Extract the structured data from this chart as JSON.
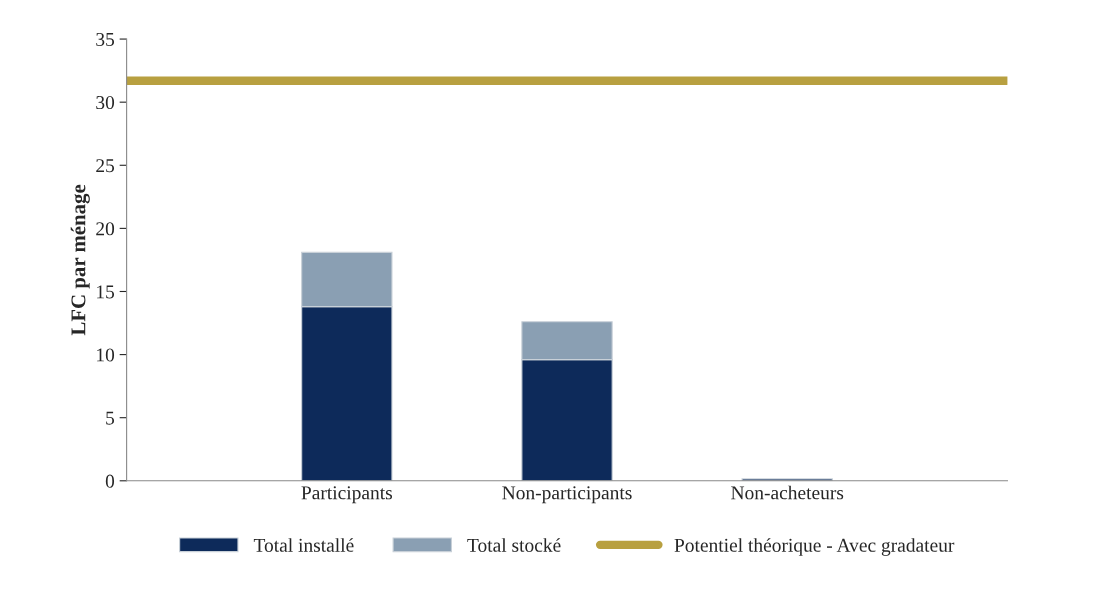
{
  "chart_data": {
    "type": "bar",
    "stacked": true,
    "ylabel": "LFC par ménage",
    "categories": [
      null,
      "Participants",
      "Non-participants",
      "Non-acheteurs",
      null
    ],
    "series": [
      {
        "name": "Total installé",
        "color": "#0d2a5a",
        "values": [
          null,
          13.8,
          9.6,
          0.15,
          null
        ]
      },
      {
        "name": "Total stocké",
        "color": "#8a9fb3",
        "values": [
          null,
          4.3,
          3.0,
          null,
          null
        ]
      },
      {
        "name": "Potentiel théorique - Avec gradateur",
        "type": "line",
        "color": "#b8a040",
        "values": [
          31.7,
          31.7,
          31.7,
          31.7,
          31.7
        ]
      }
    ],
    "ylim": [
      0,
      35
    ],
    "yticks": [
      0,
      5,
      10,
      15,
      20,
      25,
      30,
      35
    ],
    "grid": false,
    "legend": "bottom"
  }
}
